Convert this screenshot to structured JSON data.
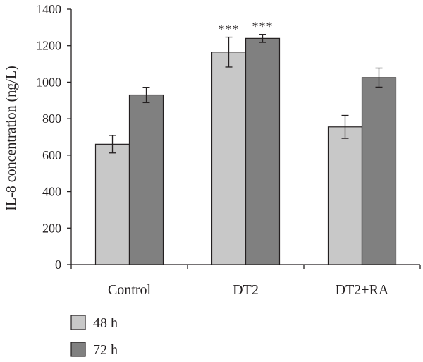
{
  "chart_data": {
    "type": "bar",
    "ylabel": "IL-8 concentration (ng/L)",
    "ylim": [
      0,
      1400
    ],
    "y_ticks": [
      0,
      200,
      400,
      600,
      800,
      1000,
      1200,
      1400
    ],
    "categories": [
      "Control",
      "DT2",
      "DT2+RA"
    ],
    "series": [
      {
        "name": "48 h",
        "color": "#c8c8c8",
        "values": [
          660,
          1165,
          755
        ],
        "errors": [
          48,
          82,
          63
        ],
        "annotations": [
          "",
          "***",
          ""
        ]
      },
      {
        "name": "72 h",
        "color": "#808080",
        "values": [
          930,
          1240,
          1025
        ],
        "errors": [
          42,
          22,
          52
        ],
        "annotations": [
          "",
          "***",
          ""
        ]
      }
    ],
    "legend_position": "bottom-left",
    "grid": false
  }
}
